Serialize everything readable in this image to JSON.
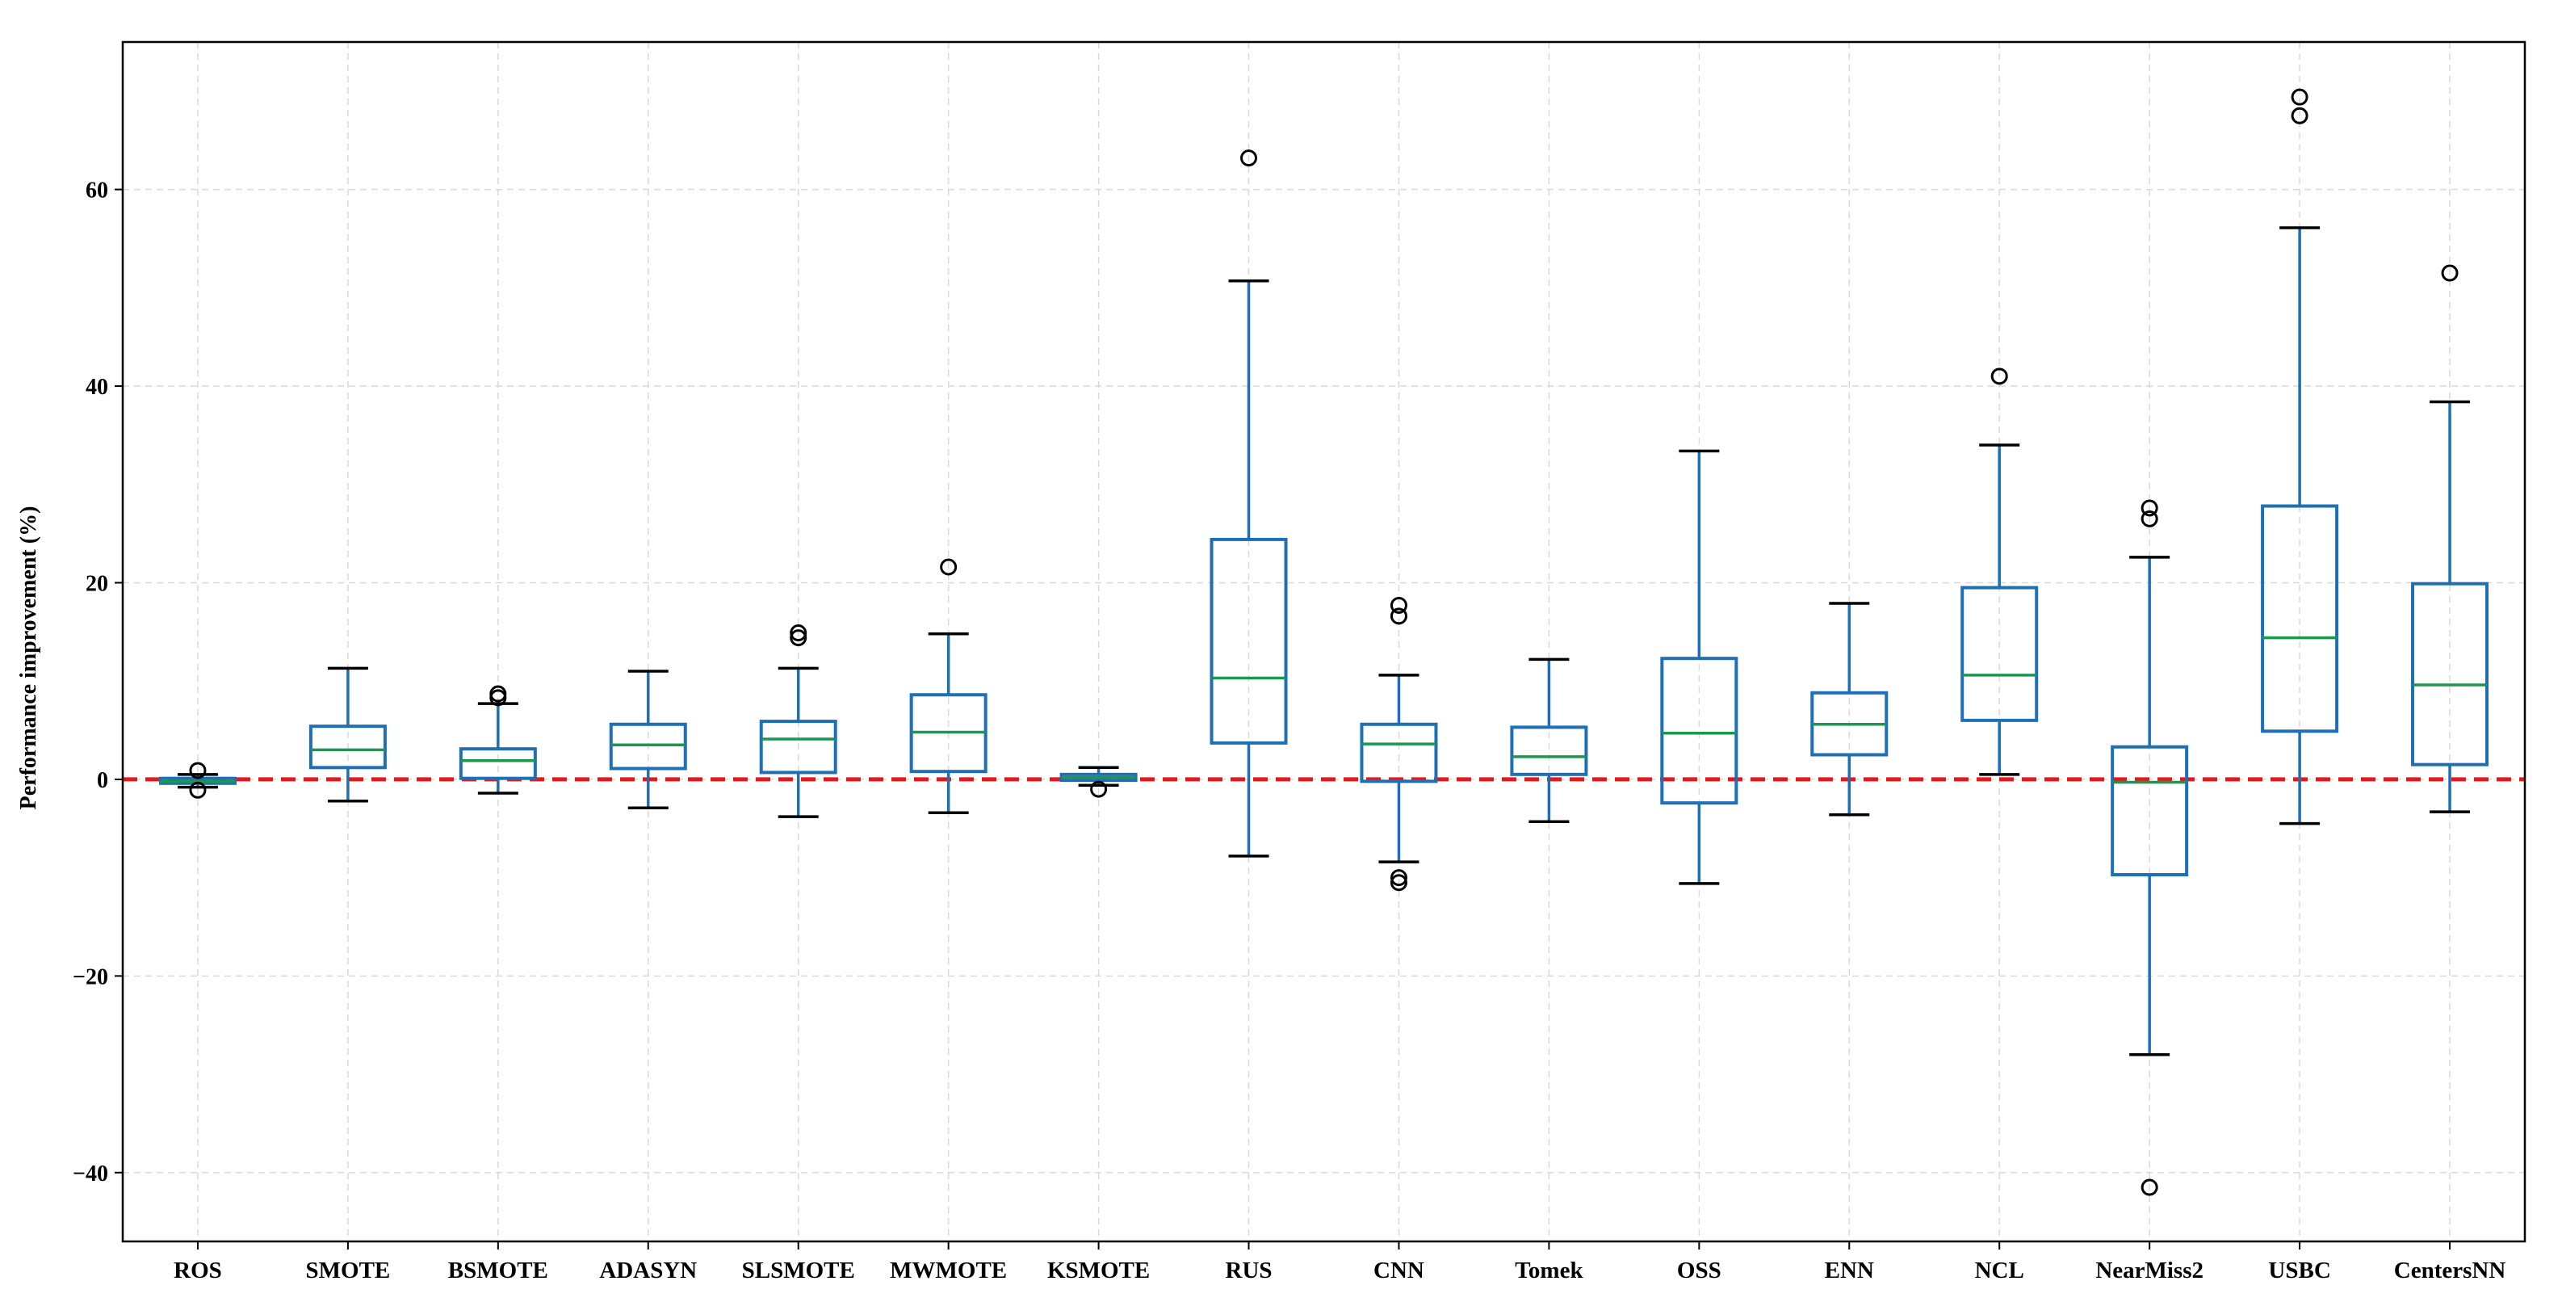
{
  "chart_data": {
    "type": "boxplot",
    "title": "",
    "xlabel": "",
    "ylabel": "Performance improvement (%)",
    "ylim": [
      -47,
      75
    ],
    "yticks": [
      -40,
      -20,
      0,
      20,
      40,
      60
    ],
    "ytick_labels": [
      "−40",
      "−20",
      "0",
      "20",
      "40",
      "60"
    ],
    "grid": true,
    "reference_line": {
      "y": 0,
      "color": "#e31a1c",
      "style": "dashed"
    },
    "colors": {
      "box": "#1f6fb4",
      "median": "#1a9850",
      "reference": "#e31a1c",
      "grid": "#d9d9d9",
      "flier": "#000000"
    },
    "categories": [
      "ROS",
      "SMOTE",
      "BSMOTE",
      "ADASYN",
      "SLSMOTE",
      "MWMOTE",
      "KSMOTE",
      "RUS",
      "CNN",
      "Tomek",
      "OSS",
      "ENN",
      "NCL",
      "NearMiss2",
      "USBC",
      "CentersNN"
    ],
    "boxes": [
      {
        "whislo": -0.8,
        "q1": -0.4,
        "med": -0.2,
        "q3": 0.1,
        "whishi": 0.5,
        "fliers": [
          0.9,
          -1.1
        ]
      },
      {
        "whislo": -2.2,
        "q1": 1.2,
        "med": 3.0,
        "q3": 5.4,
        "whishi": 11.3,
        "fliers": []
      },
      {
        "whislo": -1.4,
        "q1": 0.1,
        "med": 1.9,
        "q3": 3.1,
        "whishi": 7.7,
        "fliers": [
          8.3,
          8.7
        ]
      },
      {
        "whislo": -2.9,
        "q1": 1.1,
        "med": 3.5,
        "q3": 5.6,
        "whishi": 11.0,
        "fliers": []
      },
      {
        "whislo": -3.8,
        "q1": 0.7,
        "med": 4.1,
        "q3": 5.9,
        "whishi": 11.3,
        "fliers": [
          14.4,
          14.9
        ]
      },
      {
        "whislo": -3.4,
        "q1": 0.8,
        "med": 4.8,
        "q3": 8.6,
        "whishi": 14.8,
        "fliers": [
          21.6
        ]
      },
      {
        "whislo": -0.6,
        "q1": -0.1,
        "med": 0.2,
        "q3": 0.5,
        "whishi": 1.2,
        "fliers": [
          -1.0
        ]
      },
      {
        "whislo": -7.8,
        "q1": 3.7,
        "med": 10.3,
        "q3": 24.4,
        "whishi": 50.7,
        "fliers": [
          63.2
        ]
      },
      {
        "whislo": -8.4,
        "q1": -0.2,
        "med": 3.6,
        "q3": 5.6,
        "whishi": 10.6,
        "fliers": [
          16.6,
          17.7,
          -10.0,
          -10.5
        ]
      },
      {
        "whislo": -4.3,
        "q1": 0.5,
        "med": 2.3,
        "q3": 5.3,
        "whishi": 12.2,
        "fliers": []
      },
      {
        "whislo": -10.6,
        "q1": -2.4,
        "med": 4.7,
        "q3": 12.3,
        "whishi": 33.4,
        "fliers": []
      },
      {
        "whislo": -3.6,
        "q1": 2.5,
        "med": 5.6,
        "q3": 8.8,
        "whishi": 17.9,
        "fliers": []
      },
      {
        "whislo": 0.5,
        "q1": 6.0,
        "med": 10.6,
        "q3": 19.5,
        "whishi": 34.0,
        "fliers": [
          41.0
        ]
      },
      {
        "whislo": -28.0,
        "q1": -9.7,
        "med": -0.3,
        "q3": 3.3,
        "whishi": 22.6,
        "fliers": [
          26.5,
          27.6,
          -41.5
        ]
      },
      {
        "whislo": -4.5,
        "q1": 4.9,
        "med": 14.4,
        "q3": 27.8,
        "whishi": 56.1,
        "fliers": [
          67.5,
          69.4
        ]
      },
      {
        "whislo": -3.3,
        "q1": 1.5,
        "med": 9.6,
        "q3": 19.9,
        "whishi": 38.4,
        "fliers": [
          51.5
        ]
      }
    ]
  }
}
